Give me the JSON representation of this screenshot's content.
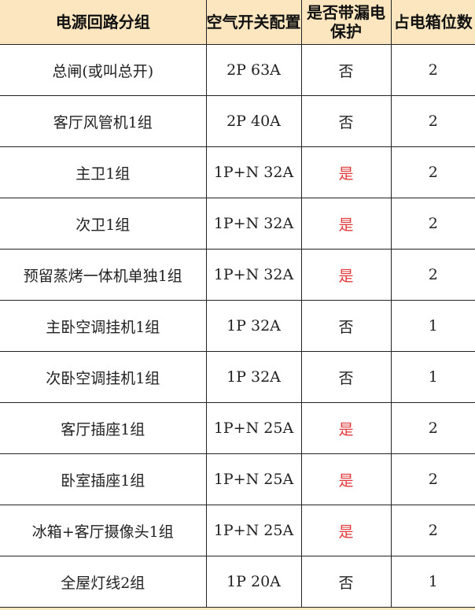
{
  "headers": [
    "电源回路分组",
    "空气开关配置",
    "是否带漏电保护",
    "占电箱位数"
  ],
  "rows": [
    [
      "总闸(或叫总开)",
      "2P 63A",
      "否",
      "2"
    ],
    [
      "客厅风管机1组",
      "2P 40A",
      "否",
      "2"
    ],
    [
      "主卫1组",
      "1P+N 32A",
      "是",
      "2"
    ],
    [
      "次卫1组",
      "1P+N 32A",
      "是",
      "2"
    ],
    [
      "预留蒸烤一体机单独1组",
      "1P+N 32A",
      "是",
      "2"
    ],
    [
      "主卧空调挂机1组",
      "1P 32A",
      "否",
      "1"
    ],
    [
      "次卧空调挂机1组",
      "1P 32A",
      "否",
      "1"
    ],
    [
      "客厅插座1组",
      "1P+N 25A",
      "是",
      "2"
    ],
    [
      "卧室插座1组",
      "1P+N 25A",
      "是",
      "2"
    ],
    [
      "冰箱+客厅摄像头1组",
      "1P+N 25A",
      "是",
      "2"
    ],
    [
      "全屋灯线2组",
      "1P 20A",
      "否",
      "1"
    ]
  ],
  "colors": {
    "header_bg": "#fbe6bf",
    "yes_text": "#e23a3a"
  }
}
